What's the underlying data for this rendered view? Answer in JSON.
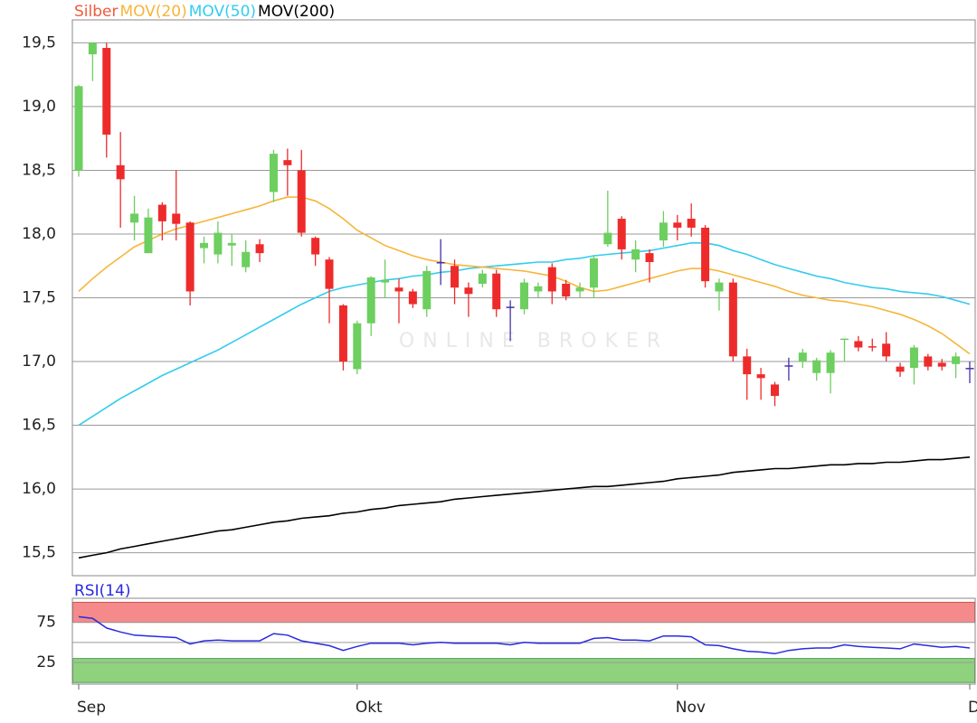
{
  "chart_data": {
    "type": "candlestick",
    "watermark": "ONLINE BROKER",
    "categories": [
      "Sep",
      null,
      null,
      null,
      null,
      null,
      null,
      null,
      null,
      null,
      null,
      null,
      null,
      null,
      null,
      null,
      null,
      null,
      null,
      null,
      "Okt",
      null,
      null,
      null,
      null,
      null,
      null,
      null,
      null,
      null,
      null,
      null,
      null,
      null,
      null,
      null,
      null,
      null,
      null,
      null,
      null,
      null,
      null,
      "Nov",
      null,
      null,
      null,
      null,
      null,
      null,
      null,
      null,
      null,
      null,
      null,
      null,
      null,
      null,
      null,
      null,
      null,
      null,
      null,
      null,
      "D"
    ],
    "ylim": [
      15.32,
      19.68
    ],
    "yticks": [
      {
        "value": 15.5,
        "label": "15,5"
      },
      {
        "value": 16,
        "label": "16,0"
      },
      {
        "value": 16.5,
        "label": "16,5"
      },
      {
        "value": 17,
        "label": "17,0"
      },
      {
        "value": 17.5,
        "label": "17,5"
      },
      {
        "value": 18,
        "label": "18,0"
      },
      {
        "value": 18.5,
        "label": "18,5"
      },
      {
        "value": 19,
        "label": "19,0"
      },
      {
        "value": 19.5,
        "label": "19,5"
      }
    ],
    "grid": true,
    "series": [
      {
        "name": "Silber",
        "color": "#f05a3c",
        "up_color": "#6ccf5f",
        "down_color": "#ee2b2b",
        "flat_color": "#4433aa",
        "open": [
          18.5,
          19.41,
          19.46,
          18.54,
          18.09,
          17.85,
          18.23,
          18.16,
          18.09,
          17.89,
          17.84,
          17.91,
          17.74,
          17.92,
          18.33,
          18.58,
          18.5,
          17.97,
          17.8,
          17.44,
          16.94,
          17.3,
          17.62,
          17.58,
          17.55,
          17.41,
          17.78,
          17.75,
          17.58,
          17.61,
          17.69,
          17.43,
          17.41,
          17.55,
          17.74,
          17.61,
          17.55,
          17.58,
          17.92,
          18.12,
          17.8,
          17.85,
          17.95,
          18.09,
          18.12,
          18.05,
          17.55,
          17.62,
          17.04,
          16.9,
          16.82,
          16.97,
          17.0,
          16.91,
          16.91,
          17.17,
          17.16,
          17.12,
          17.14,
          16.96,
          16.95,
          17.04,
          16.99,
          16.98,
          16.95
        ],
        "high": [
          19.17,
          19.5,
          19.5,
          18.8,
          18.3,
          18.2,
          18.25,
          18.5,
          18.1,
          17.98,
          18.1,
          18.0,
          17.95,
          17.96,
          18.66,
          18.67,
          18.66,
          17.98,
          17.82,
          17.45,
          17.32,
          17.67,
          17.8,
          17.65,
          17.57,
          17.75,
          17.96,
          17.8,
          17.62,
          17.72,
          17.72,
          17.48,
          17.65,
          17.62,
          17.77,
          17.64,
          17.62,
          17.83,
          18.34,
          18.14,
          17.95,
          17.88,
          18.18,
          18.15,
          18.24,
          18.07,
          17.65,
          17.65,
          17.1,
          16.95,
          16.84,
          17.03,
          17.1,
          17.03,
          17.09,
          17.18,
          17.2,
          17.18,
          17.23,
          16.99,
          17.13,
          17.06,
          17.02,
          17.07,
          17.0
        ],
        "low": [
          18.45,
          19.2,
          18.6,
          18.05,
          17.95,
          17.85,
          17.95,
          17.95,
          17.44,
          17.77,
          17.77,
          17.75,
          17.7,
          17.78,
          18.25,
          18.3,
          17.98,
          17.75,
          17.3,
          16.93,
          16.9,
          17.2,
          17.5,
          17.3,
          17.42,
          17.35,
          17.6,
          17.45,
          17.35,
          17.58,
          17.35,
          17.16,
          17.37,
          17.5,
          17.45,
          17.48,
          17.5,
          17.5,
          17.9,
          17.8,
          17.7,
          17.62,
          17.9,
          17.95,
          17.98,
          17.58,
          17.4,
          17.0,
          16.7,
          16.7,
          16.65,
          16.85,
          16.95,
          16.85,
          16.75,
          17.0,
          17.08,
          17.08,
          17.0,
          16.88,
          16.82,
          16.93,
          16.93,
          16.87,
          16.83
        ],
        "close": [
          19.16,
          19.5,
          18.78,
          18.43,
          18.16,
          18.13,
          18.1,
          18.08,
          17.55,
          17.93,
          18.01,
          17.93,
          17.86,
          17.85,
          18.63,
          18.54,
          18.01,
          17.84,
          17.57,
          17.0,
          17.3,
          17.66,
          17.64,
          17.55,
          17.45,
          17.71,
          17.78,
          17.58,
          17.53,
          17.69,
          17.41,
          17.43,
          17.62,
          17.59,
          17.55,
          17.51,
          17.58,
          17.81,
          18.01,
          17.88,
          17.88,
          17.78,
          18.09,
          18.05,
          18.05,
          17.63,
          17.62,
          17.04,
          16.9,
          16.87,
          16.73,
          16.97,
          17.07,
          17.01,
          17.07,
          17.18,
          17.11,
          17.11,
          17.04,
          16.92,
          17.11,
          16.96,
          16.96,
          17.04,
          16.95
        ]
      },
      {
        "name": "MOV(20)",
        "color": "#f7b53a",
        "values": [
          17.55,
          17.65,
          17.74,
          17.82,
          17.9,
          17.95,
          18.0,
          18.04,
          18.07,
          18.1,
          18.13,
          18.16,
          18.19,
          18.22,
          18.26,
          18.29,
          18.29,
          18.26,
          18.2,
          18.12,
          18.03,
          17.97,
          17.91,
          17.87,
          17.83,
          17.8,
          17.78,
          17.76,
          17.75,
          17.74,
          17.73,
          17.72,
          17.71,
          17.69,
          17.67,
          17.63,
          17.58,
          17.55,
          17.56,
          17.59,
          17.62,
          17.65,
          17.68,
          17.71,
          17.73,
          17.73,
          17.71,
          17.68,
          17.65,
          17.62,
          17.59,
          17.55,
          17.52,
          17.5,
          17.48,
          17.47,
          17.45,
          17.43,
          17.4,
          17.37,
          17.33,
          17.28,
          17.22,
          17.14,
          17.06
        ]
      },
      {
        "name": "MOV(50)",
        "color": "#33ccee",
        "values": [
          16.5,
          16.57,
          16.64,
          16.71,
          16.77,
          16.83,
          16.89,
          16.94,
          16.99,
          17.04,
          17.09,
          17.15,
          17.21,
          17.27,
          17.33,
          17.39,
          17.45,
          17.5,
          17.55,
          17.58,
          17.6,
          17.62,
          17.64,
          17.65,
          17.67,
          17.68,
          17.7,
          17.71,
          17.73,
          17.74,
          17.75,
          17.76,
          17.77,
          17.78,
          17.78,
          17.8,
          17.81,
          17.83,
          17.84,
          17.85,
          17.86,
          17.87,
          17.89,
          17.91,
          17.93,
          17.93,
          17.91,
          17.87,
          17.84,
          17.8,
          17.76,
          17.73,
          17.7,
          17.67,
          17.65,
          17.62,
          17.6,
          17.58,
          17.57,
          17.55,
          17.54,
          17.53,
          17.51,
          17.48,
          17.45
        ]
      },
      {
        "name": "MOV(200)",
        "color": "#000000",
        "values": [
          15.46,
          15.48,
          15.5,
          15.53,
          15.55,
          15.57,
          15.59,
          15.61,
          15.63,
          15.65,
          15.67,
          15.68,
          15.7,
          15.72,
          15.74,
          15.75,
          15.77,
          15.78,
          15.79,
          15.81,
          15.82,
          15.84,
          15.85,
          15.87,
          15.88,
          15.89,
          15.9,
          15.92,
          15.93,
          15.94,
          15.95,
          15.96,
          15.97,
          15.98,
          15.99,
          16.0,
          16.01,
          16.02,
          16.02,
          16.03,
          16.04,
          16.05,
          16.06,
          16.08,
          16.09,
          16.1,
          16.11,
          16.13,
          16.14,
          16.15,
          16.16,
          16.16,
          16.17,
          16.18,
          16.19,
          16.19,
          16.2,
          16.2,
          16.21,
          16.21,
          16.22,
          16.23,
          16.23,
          16.24,
          16.25
        ]
      }
    ],
    "rsi": {
      "title": "RSI(14)",
      "color": "#2a2ae0",
      "values": [
        82,
        80,
        68,
        63,
        59,
        58,
        57,
        56,
        48,
        52,
        53,
        52,
        52,
        52,
        61,
        59,
        52,
        49,
        46,
        40,
        45,
        49,
        49,
        49,
        47,
        49,
        50,
        49,
        49,
        49,
        49,
        47,
        50,
        49,
        49,
        49,
        49,
        55,
        56,
        53,
        53,
        52,
        58,
        58,
        57,
        47,
        46,
        42,
        39,
        38,
        36,
        40,
        42,
        43,
        43,
        47,
        45,
        44,
        43,
        42,
        48,
        46,
        44,
        45,
        43
      ],
      "ylim": [
        -2,
        105
      ],
      "yticks": [
        25,
        75
      ],
      "midline": 50,
      "overbought": [
        75,
        100
      ],
      "overbought_color": "#f48a8a",
      "oversold": [
        0,
        30
      ],
      "oversold_color": "#8ed27e"
    }
  }
}
